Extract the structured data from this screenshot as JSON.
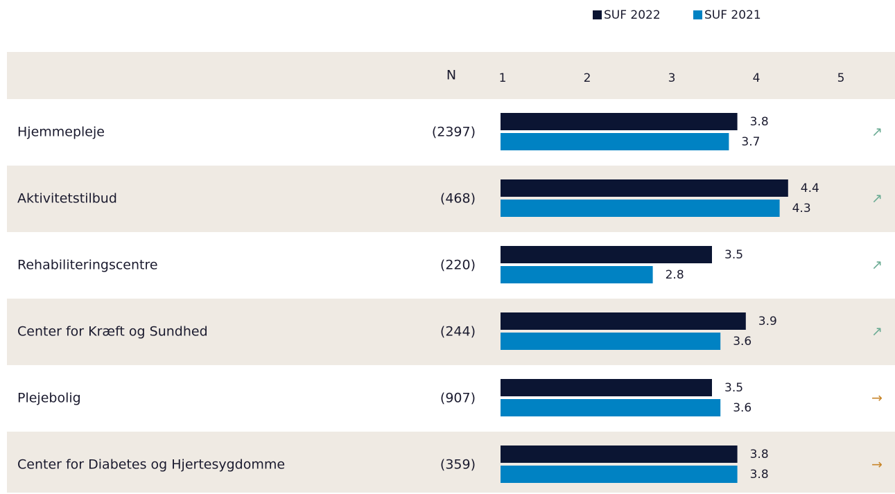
{
  "chart_data": {
    "type": "bar",
    "n_header": "N",
    "categories": [
      "Hjemmepleje",
      "Aktivitetstilbud",
      "Rehabiliteringscentre",
      "Center for Kræft og Sundhed",
      "Plejebolig",
      "Center for Diabetes og Hjertesygdomme"
    ],
    "n": [
      "(2397)",
      "(468)",
      "(220)",
      "(244)",
      "(907)",
      "(359)"
    ],
    "trend": [
      "↗",
      "↗",
      "↗",
      "↗",
      "→",
      "→"
    ],
    "trend_colors": [
      "#6aab93",
      "#6aab93",
      "#6aab93",
      "#6aab93",
      "#c8862a",
      "#c8862a"
    ],
    "series": [
      {
        "name": "SUF 2022",
        "color": "#0b1533",
        "values": [
          3.8,
          4.4,
          3.5,
          3.9,
          3.5,
          3.8
        ]
      },
      {
        "name": "SUF 2021",
        "color": "#0082c3",
        "values": [
          3.7,
          4.3,
          2.8,
          3.6,
          3.6,
          3.8
        ]
      }
    ],
    "xlim": [
      1,
      5
    ],
    "xticks": [
      1,
      2,
      3,
      4,
      5
    ]
  }
}
